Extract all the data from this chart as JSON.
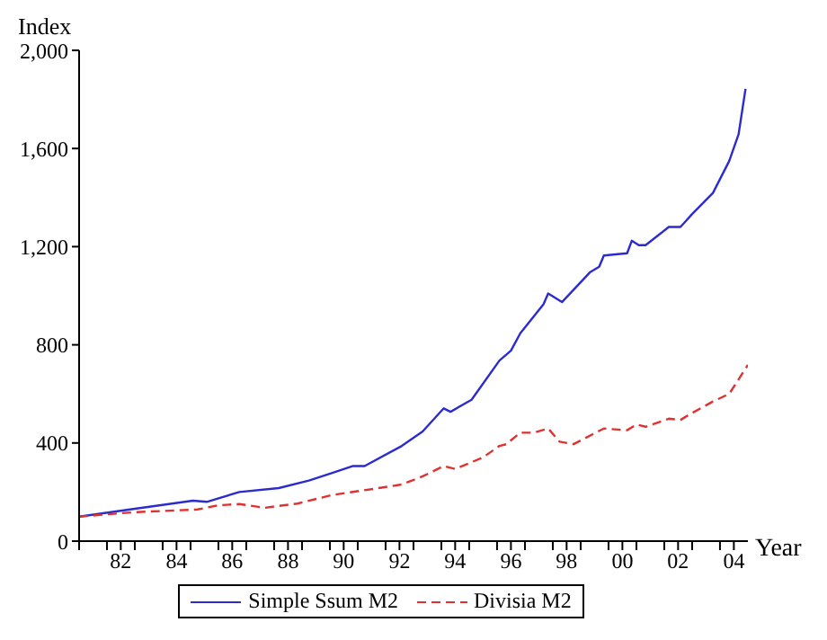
{
  "chart_data": {
    "type": "line",
    "xlabel": "Year",
    "ylabel": "Index",
    "xlim": [
      "1981-01",
      "2005-01"
    ],
    "xticks": [
      {
        "value": "1981-01",
        "label": null
      },
      {
        "value": "1982-01",
        "label": null
      },
      {
        "value": "1982-07",
        "label": "82"
      },
      {
        "value": "1983-01",
        "label": null
      },
      {
        "value": "1984-01",
        "label": null
      },
      {
        "value": "1984-07",
        "label": "84"
      },
      {
        "value": "1985-01",
        "label": null
      },
      {
        "value": "1986-01",
        "label": null
      },
      {
        "value": "1986-07",
        "label": "86"
      },
      {
        "value": "1987-01",
        "label": null
      },
      {
        "value": "1988-01",
        "label": null
      },
      {
        "value": "1988-07",
        "label": "88"
      },
      {
        "value": "1989-01",
        "label": null
      },
      {
        "value": "1990-01",
        "label": null
      },
      {
        "value": "1990-07",
        "label": "90"
      },
      {
        "value": "1991-01",
        "label": null
      },
      {
        "value": "1992-01",
        "label": null
      },
      {
        "value": "1992-07",
        "label": "92"
      },
      {
        "value": "1993-01",
        "label": null
      },
      {
        "value": "1994-01",
        "label": null
      },
      {
        "value": "1994-07",
        "label": "94"
      },
      {
        "value": "1995-01",
        "label": null
      },
      {
        "value": "1996-01",
        "label": null
      },
      {
        "value": "1996-07",
        "label": "96"
      },
      {
        "value": "1997-01",
        "label": null
      },
      {
        "value": "1998-01",
        "label": null
      },
      {
        "value": "1998-07",
        "label": "98"
      },
      {
        "value": "1999-01",
        "label": null
      },
      {
        "value": "2000-01",
        "label": null
      },
      {
        "value": "2000-07",
        "label": "00"
      },
      {
        "value": "2001-01",
        "label": null
      },
      {
        "value": "2002-01",
        "label": null
      },
      {
        "value": "2002-07",
        "label": "02"
      },
      {
        "value": "2003-01",
        "label": null
      },
      {
        "value": "2004-01",
        "label": null
      },
      {
        "value": "2004-07",
        "label": "04"
      }
    ],
    "ylim": [
      0,
      2000
    ],
    "yticks": [
      {
        "value": 0,
        "label": "0"
      },
      {
        "value": 400,
        "label": "400"
      },
      {
        "value": 800,
        "label": "800"
      },
      {
        "value": 1200,
        "label": "1,200"
      },
      {
        "value": 1600,
        "label": "1,600"
      },
      {
        "value": 2000,
        "label": "2,000"
      }
    ],
    "grid": false,
    "legend": "bottom",
    "marker": "none",
    "series": [
      {
        "name": "Simple Ssum M2",
        "color": "#2b2bd0",
        "line_style": "solid",
        "x": [
          "1981-01",
          "1982-11",
          "1985-02",
          "1985-08",
          "1986-10",
          "1988-03",
          "1989-04",
          "1990-02",
          "1990-11",
          "1991-04",
          "1992-08",
          "1993-05",
          "1994-02",
          "1994-05",
          "1995-02",
          "1996-02",
          "1996-07",
          "1996-11",
          "1997-09",
          "1997-11",
          "1998-05",
          "1999-05",
          "1999-09",
          "1999-11",
          "2000-09",
          "2000-11",
          "2001-02",
          "2001-05",
          "2002-03",
          "2002-08",
          "2003-01",
          "2003-10",
          "2004-05",
          "2004-09",
          "2004-12"
        ],
        "values": [
          100,
          129,
          165,
          160,
          200,
          216,
          247,
          278,
          306,
          306,
          388,
          447,
          541,
          527,
          576,
          736,
          776,
          847,
          965,
          1009,
          974,
          1095,
          1118,
          1164,
          1173,
          1224,
          1206,
          1206,
          1280,
          1280,
          1333,
          1419,
          1549,
          1658,
          1843
        ]
      },
      {
        "name": "Divisia M2",
        "color": "#e03030",
        "line_style": "dashed",
        "x": [
          "1981-01",
          "1983-01",
          "1985-04",
          "1986-01",
          "1986-10",
          "1987-09",
          "1988-11",
          "1990-02",
          "1991-10",
          "1992-08",
          "1993-05",
          "1994-02",
          "1994-07",
          "1995-07",
          "1996-02",
          "1996-05",
          "1996-11",
          "1997-05",
          "1997-11",
          "1998-04",
          "1998-10",
          "1999-11",
          "2000-09",
          "2001-01",
          "2001-05",
          "2002-03",
          "2002-08",
          "2003-01",
          "2003-10",
          "2004-05",
          "2004-09",
          "2005-01"
        ],
        "values": [
          100,
          118,
          129,
          146,
          151,
          136,
          153,
          188,
          216,
          231,
          264,
          306,
          294,
          341,
          388,
          395,
          442,
          442,
          459,
          405,
          395,
          459,
          452,
          475,
          466,
          499,
          494,
          522,
          569,
          600,
          659,
          718
        ]
      }
    ]
  }
}
